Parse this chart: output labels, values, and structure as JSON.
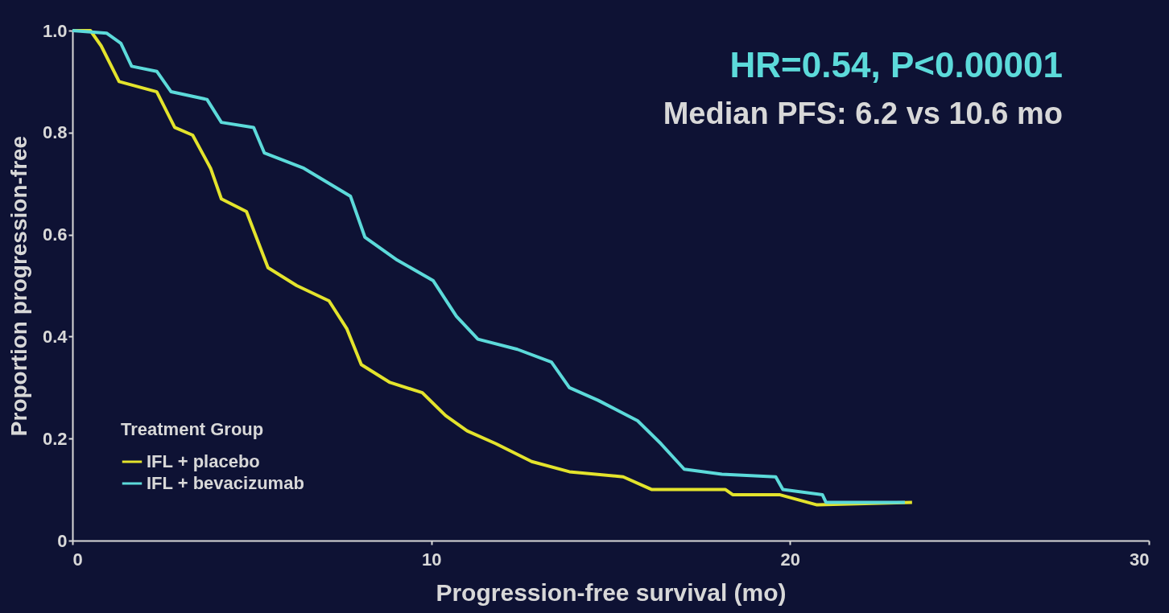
{
  "chart_data": {
    "type": "line",
    "xlabel": "Progression-free survival (mo)",
    "ylabel": "Proportion progression-free",
    "xlim": [
      0,
      30
    ],
    "xticks": [
      0,
      10,
      20,
      30
    ],
    "ylim": [
      0,
      1
    ],
    "yticks": [
      0,
      0.2,
      0.4,
      0.6,
      0.8,
      {
        "value": 1,
        "label": "1.0"
      }
    ],
    "grid": false,
    "legend": "bottom left",
    "legend_title": "Treatment Group",
    "marker": "none",
    "line_style": "solid",
    "annotations": [
      "HR=0.54, P<0.00001",
      "Median PFS: 6.2 vs 10.6 mo"
    ],
    "series": [
      {
        "name": "IFL + placebo",
        "color": "#e3e32c",
        "x": [
          0,
          0.5,
          0.8,
          1.3,
          2.35,
          2.85,
          3.35,
          3.85,
          4.15,
          4.85,
          5.45,
          6.25,
          7.15,
          7.65,
          8.05,
          8.85,
          9.75,
          10.4,
          11.0,
          11.8,
          12.8,
          13.85,
          15.35,
          16.15,
          18.2,
          18.4,
          19.7,
          20.75,
          23.4
        ],
        "values": [
          1.0,
          1.0,
          0.97,
          0.9,
          0.88,
          0.81,
          0.795,
          0.73,
          0.67,
          0.645,
          0.535,
          0.5,
          0.47,
          0.415,
          0.345,
          0.31,
          0.29,
          0.245,
          0.215,
          0.19,
          0.155,
          0.135,
          0.125,
          0.1,
          0.1,
          0.09,
          0.09,
          0.07,
          0.075
        ]
      },
      {
        "name": "IFL + bevacizumab",
        "color": "#5cdada",
        "x": [
          0,
          0.95,
          1.35,
          1.65,
          2.35,
          2.75,
          3.75,
          4.15,
          5.05,
          5.35,
          6.45,
          7.75,
          8.15,
          9.05,
          10.05,
          10.7,
          11.3,
          12.4,
          13.35,
          13.85,
          14.65,
          15.75,
          16.4,
          17.05,
          18.1,
          19.6,
          19.8,
          20.9,
          21.0,
          23.2
        ],
        "values": [
          1.0,
          0.995,
          0.975,
          0.93,
          0.92,
          0.88,
          0.865,
          0.82,
          0.81,
          0.76,
          0.73,
          0.675,
          0.595,
          0.55,
          0.51,
          0.44,
          0.395,
          0.375,
          0.35,
          0.3,
          0.275,
          0.235,
          0.19,
          0.14,
          0.13,
          0.125,
          0.1,
          0.09,
          0.075,
          0.075
        ]
      }
    ]
  }
}
